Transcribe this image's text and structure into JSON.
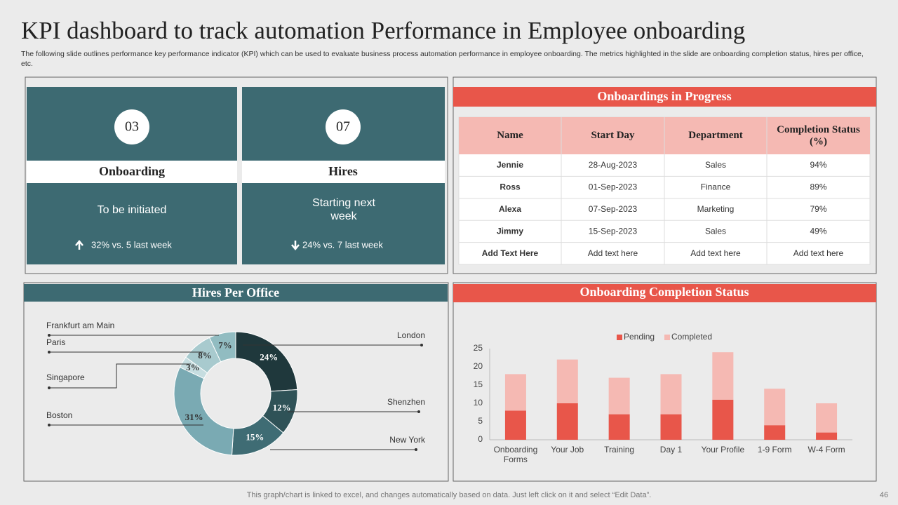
{
  "header": {
    "title": "KPI dashboard to track automation Performance in Employee onboarding",
    "subtitle": "The following slide outlines performance key performance indicator (KPI) which can be used to evaluate business process automation performance in employee onboarding. The metrics highlighted in the slide are onboarding completion status, hires per office, etc."
  },
  "kpis": [
    {
      "number": "03",
      "label": "Onboarding",
      "status": "To be initiated",
      "trend": "32% vs. 5 last week"
    },
    {
      "number": "07",
      "label": "Hires",
      "status": "Starting next week",
      "trend": "24% vs. 7 last week"
    }
  ],
  "table": {
    "title": "Onboardings in Progress",
    "columns": [
      "Name",
      "Start Day",
      "Department",
      "Completion Status (%)"
    ],
    "rows": [
      [
        "Jennie",
        "28-Aug-2023",
        "Sales",
        "94%"
      ],
      [
        "Ross",
        "01-Sep-2023",
        "Finance",
        "89%"
      ],
      [
        "Alexa",
        "07-Sep-2023",
        "Marketing",
        "79%"
      ],
      [
        "Jimmy",
        "15-Sep-2023",
        "Sales",
        "49%"
      ],
      [
        "Add Text Here",
        "Add text here",
        "Add text here",
        "Add text here"
      ]
    ]
  },
  "chart_data": [
    {
      "type": "donut",
      "title": "Hires Per Office",
      "categories": [
        "London",
        "Shenzhen",
        "New York",
        "Boston",
        "Singapore",
        "Paris",
        "Frankfurt  am Main"
      ],
      "values": [
        24,
        12,
        15,
        31,
        3,
        8,
        7
      ],
      "value_labels": [
        "24%",
        "12%",
        "15%",
        "31%",
        "3%",
        "8%",
        "7%"
      ],
      "colors": [
        "#1f383c",
        "#2f5257",
        "#3f6c74",
        "#7aaab3",
        "#c6dde0",
        "#a8cace",
        "#91bcc1"
      ]
    },
    {
      "type": "stacked_bar",
      "title": "Onboarding Completion Status",
      "categories": [
        "Onboarding Forms",
        "Your Job",
        "Training",
        "Day 1",
        "Your Profile",
        "1-9 Form",
        "W-4 Form"
      ],
      "series": [
        {
          "name": "Pending",
          "color": "#e8564a",
          "values": [
            8,
            10,
            7,
            7,
            11,
            4,
            2
          ]
        },
        {
          "name": "Completed",
          "color": "#f5b9b3",
          "values": [
            10,
            12,
            10,
            11,
            13,
            10,
            8
          ]
        }
      ],
      "ylim": [
        0,
        25
      ],
      "yticks": [
        0,
        5,
        10,
        15,
        20,
        25
      ]
    }
  ],
  "footer": {
    "note": "This graph/chart is linked to excel,  and changes automatically based on data. Just left click on it and select “Edit Data”.",
    "page": 46
  }
}
